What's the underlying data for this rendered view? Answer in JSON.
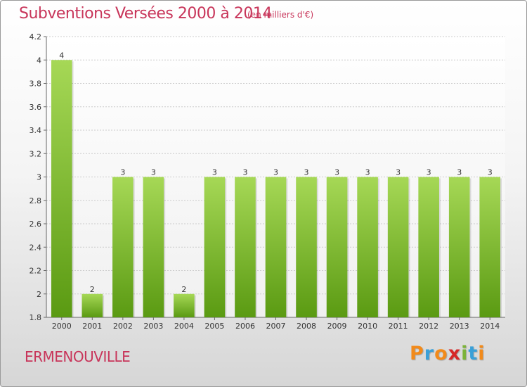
{
  "header": {
    "title": "Subventions Versées 2000 à 2014",
    "subtitle": "(en milliers d'€)"
  },
  "footer": {
    "place": "ERMENOUVILLE"
  },
  "logo": {
    "letters": [
      "P",
      "r",
      "o",
      "x",
      "i",
      "t",
      "i"
    ],
    "colors": [
      "#f28a1a",
      "#3aa0d8",
      "#f28a1a",
      "#d62828",
      "#7cb33a",
      "#3aa0d8",
      "#f28a1a"
    ]
  },
  "colors": {
    "bar_top": "#a6d856",
    "bar_bottom": "#5a9a12",
    "text_accent": "#c8355a",
    "grid": "#cccccc"
  },
  "chart_data": {
    "type": "bar",
    "title": "Subventions Versées 2000 à 2014",
    "categories": [
      "2000",
      "2001",
      "2002",
      "2003",
      "2004",
      "2005",
      "2006",
      "2007",
      "2008",
      "2009",
      "2010",
      "2011",
      "2012",
      "2013",
      "2014"
    ],
    "values": [
      4,
      2,
      3,
      3,
      2,
      3,
      3,
      3,
      3,
      3,
      3,
      3,
      3,
      3,
      3
    ],
    "value_labels": [
      "4",
      "2",
      "3",
      "3",
      "2",
      "3",
      "3",
      "3",
      "3",
      "3",
      "3",
      "3",
      "3",
      "3",
      "3"
    ],
    "ylim": [
      1.8,
      4.2
    ],
    "yticks": [
      1.8,
      2,
      2.2,
      2.4,
      2.6,
      2.8,
      3,
      3.2,
      3.4,
      3.6,
      3.8,
      4,
      4.2
    ],
    "ytick_labels": [
      "1.8",
      "2",
      "2.2",
      "2.4",
      "2.6",
      "2.8",
      "3",
      "3.2",
      "3.4",
      "3.6",
      "3.8",
      "4",
      "4.2"
    ],
    "grid": true
  }
}
